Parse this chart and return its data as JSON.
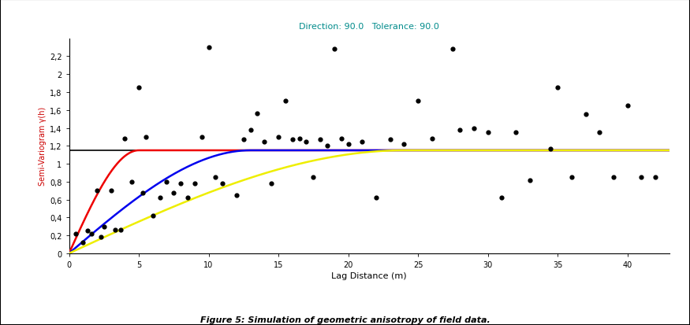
{
  "title_annotation": "Direction: 90.0   Tolerance: 90.0",
  "annotation_color": "#008B8B",
  "xlabel": "Lag Distance (m)",
  "ylabel": "Semi-Variogram γ(h)",
  "ylabel_color": "#CC0000",
  "caption": "Figure 5: Simulation of geometric anisotropy of field data.",
  "xlim": [
    0,
    43
  ],
  "ylim": [
    0,
    2.4
  ],
  "xticks": [
    0,
    5,
    10,
    15,
    20,
    25,
    30,
    35,
    40
  ],
  "ytick_vals": [
    0.0,
    0.2,
    0.4,
    0.6,
    0.8,
    1.0,
    1.2,
    1.4,
    1.6,
    1.8,
    2.0,
    2.2
  ],
  "ytick_labels": [
    "0",
    "0,2",
    "0,4",
    "0,6",
    "0,8",
    "1",
    "1,2",
    "1,4",
    "1,6",
    "1,8",
    "2",
    "2,2"
  ],
  "sill": 1.15,
  "red_range": 5.0,
  "blue_range": 13.0,
  "yellow_range": 24.0,
  "black_line_color": "#000000",
  "red_color": "#EE0000",
  "blue_color": "#0000EE",
  "yellow_color": "#EEEE00",
  "scatter_x": [
    0.5,
    1.0,
    1.3,
    1.6,
    2.0,
    2.3,
    2.5,
    3.0,
    3.3,
    3.7,
    4.0,
    4.5,
    5.0,
    5.3,
    5.5,
    6.0,
    6.5,
    7.0,
    7.5,
    8.0,
    8.5,
    9.0,
    9.5,
    10.0,
    10.5,
    11.0,
    12.0,
    12.5,
    13.0,
    13.5,
    14.0,
    14.5,
    15.0,
    15.5,
    16.0,
    16.5,
    17.0,
    17.5,
    18.0,
    18.5,
    19.0,
    19.5,
    20.0,
    21.0,
    22.0,
    23.0,
    24.0,
    25.0,
    26.0,
    27.5,
    28.0,
    29.0,
    30.0,
    31.0,
    32.0,
    33.0,
    34.5,
    35.0,
    36.0,
    37.0,
    38.0,
    39.0,
    40.0,
    41.0,
    42.0
  ],
  "scatter_y": [
    0.22,
    0.12,
    0.25,
    0.22,
    0.7,
    0.18,
    0.3,
    0.7,
    0.26,
    0.26,
    1.28,
    0.8,
    1.85,
    0.68,
    1.3,
    0.42,
    0.62,
    0.8,
    0.68,
    0.78,
    0.62,
    0.78,
    1.3,
    2.3,
    0.85,
    0.78,
    0.65,
    1.27,
    1.38,
    1.56,
    1.25,
    0.78,
    1.3,
    1.7,
    1.27,
    1.28,
    1.25,
    0.85,
    1.27,
    1.2,
    2.28,
    1.28,
    1.22,
    1.25,
    0.62,
    1.27,
    1.22,
    1.7,
    1.28,
    2.28,
    1.38,
    1.4,
    1.35,
    0.62,
    1.35,
    0.82,
    1.17,
    1.85,
    0.85,
    1.55,
    1.35,
    0.85,
    1.65,
    0.85,
    0.85
  ]
}
